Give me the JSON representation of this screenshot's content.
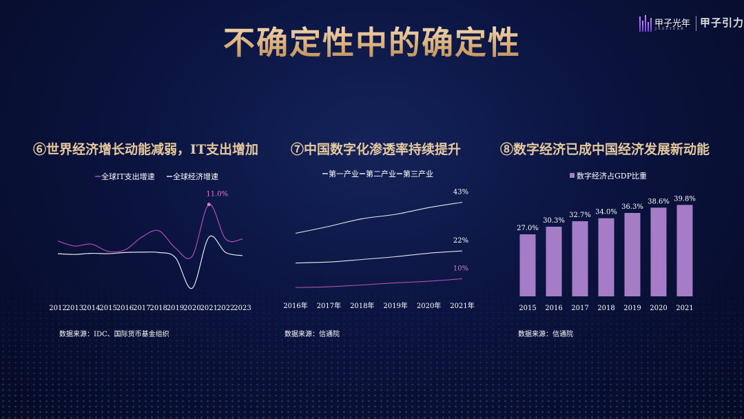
{
  "page": {
    "title": "不确定性中的确定性",
    "logo": {
      "text_cn": "甲子光年",
      "text_en": "JAZZYEAR",
      "right_text": "甲子引力"
    }
  },
  "sections": [
    {
      "title": "⑥世界经济增长动能减弱，IT支出增加",
      "source": "数据来源：IDC、国际货币基金组织"
    },
    {
      "title": "⑦中国数字化渗透率持续提升",
      "source": "数据来源：信通院"
    },
    {
      "title": "⑧数字经济已成中国经济发展新动能",
      "source": "数据来源：信通院"
    }
  ],
  "chart_data": [
    {
      "type": "line",
      "x": [
        "2012",
        "2013",
        "2014",
        "2015",
        "2016",
        "2017",
        "2018",
        "2019",
        "2020",
        "2021",
        "2022",
        "2023"
      ],
      "series": [
        {
          "name": "全球IT支出增速",
          "values": [
            1.5,
            0.2,
            0.7,
            -1.2,
            -0.8,
            2.5,
            4.2,
            -0.3,
            -2.5,
            11.0,
            2.0,
            2.0
          ],
          "color": "#b04fb8"
        },
        {
          "name": "全球经济增速",
          "values": [
            -1.8,
            -2.0,
            -1.7,
            -1.8,
            -1.5,
            -1.4,
            -1.5,
            -2.8,
            -10.8,
            2.5,
            -1.5,
            -2.3
          ],
          "color": "#e8e8f0"
        }
      ],
      "annotations": [
        {
          "series": 0,
          "index": 9,
          "text": "11.0%"
        }
      ],
      "xlabel": "",
      "ylabel": "",
      "ylim": [
        -12,
        14
      ],
      "legend": "top-center",
      "grid": false
    },
    {
      "type": "line",
      "x": [
        "2016年",
        "2017年",
        "2018年",
        "2019年",
        "2020年",
        "2021年"
      ],
      "series": [
        {
          "name": "第一产业",
          "values": [
            6.2,
            6.5,
            7.3,
            8.2,
            8.9,
            10
          ],
          "color": "#b04fb8",
          "end_label": "10%"
        },
        {
          "name": "第二产业",
          "values": [
            16.8,
            17.2,
            18.3,
            19.5,
            21.0,
            22
          ],
          "color": "#e8e8f0",
          "end_label": "22%"
        },
        {
          "name": "第三产业",
          "values": [
            29.6,
            32.6,
            35.9,
            37.8,
            40.7,
            43
          ],
          "color": "#e8e8f0",
          "end_label": "43%"
        }
      ],
      "xlabel": "",
      "ylabel": "",
      "ylim": [
        0,
        50
      ],
      "legend": "top-center",
      "grid": false
    },
    {
      "type": "bar",
      "categories": [
        "2015",
        "2016",
        "2017",
        "2018",
        "2019",
        "2020",
        "2021"
      ],
      "series": [
        {
          "name": "数字经济占GDP比重",
          "values": [
            27.0,
            30.3,
            32.7,
            34.0,
            36.3,
            38.6,
            39.8
          ],
          "color": "#a57dc7"
        }
      ],
      "data_labels": [
        "27.0%",
        "30.3%",
        "32.7%",
        "34.0%",
        "36.3%",
        "38.6%",
        "39.8%"
      ],
      "xlabel": "",
      "ylabel": "",
      "ylim": [
        0,
        45
      ],
      "legend": "top-center",
      "grid": false
    }
  ]
}
